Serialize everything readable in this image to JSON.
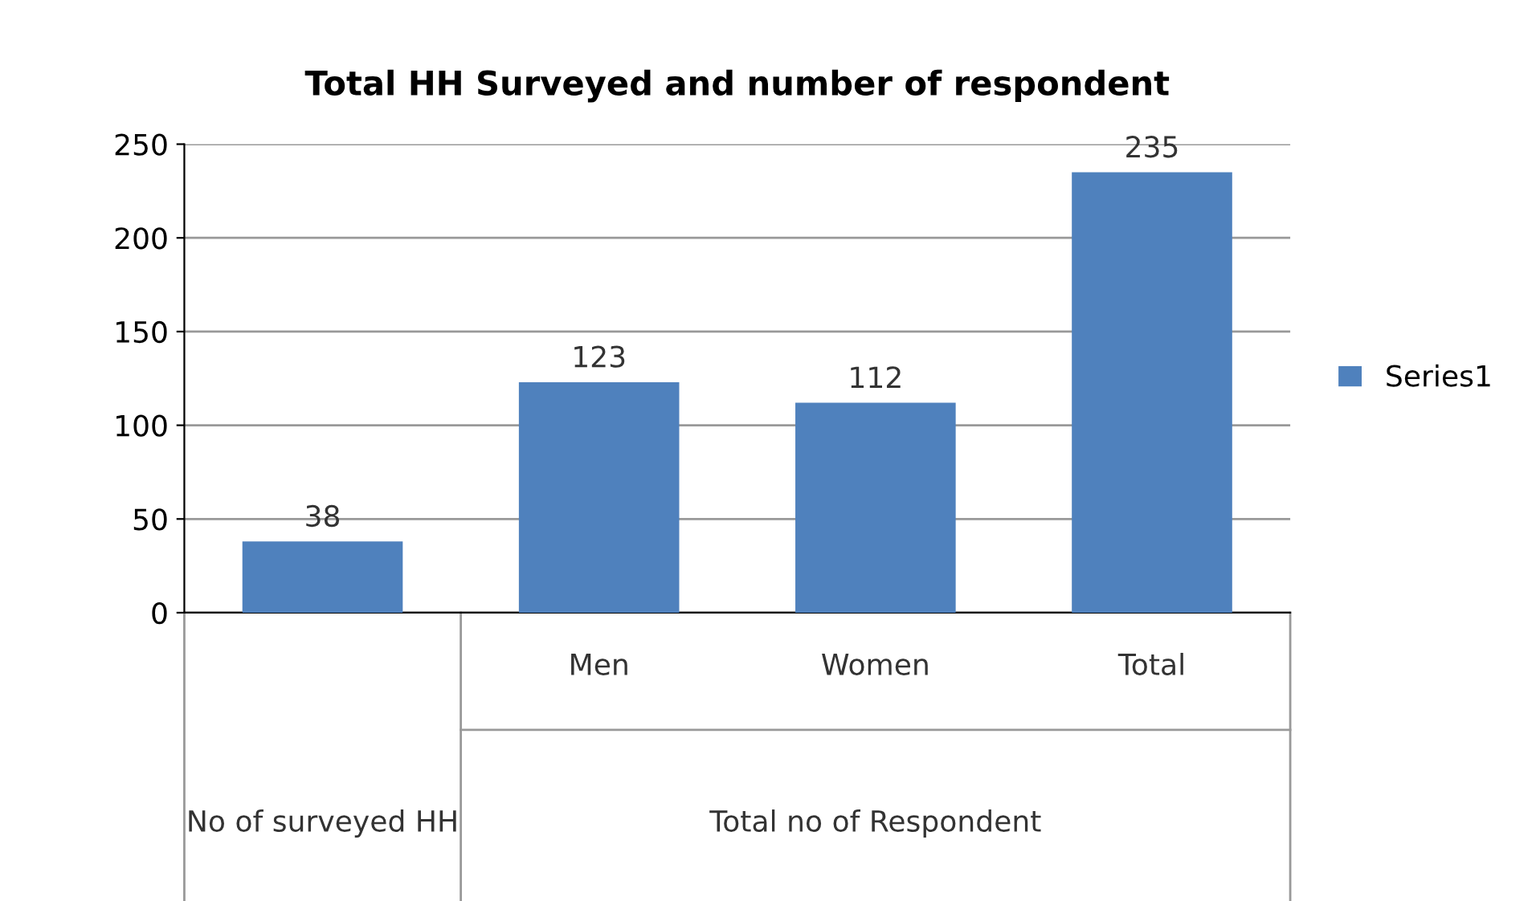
{
  "chart_data": {
    "type": "bar",
    "title": "Total HH Surveyed and number of respondent",
    "categories": [
      null,
      "Men",
      "Women",
      "Total"
    ],
    "series": [
      {
        "name": "Series1",
        "color": "#4f81bd",
        "values": [
          38,
          123,
          112,
          235
        ]
      }
    ],
    "annotations": [
      "No of surveyed HH",
      "Total no of Respondent"
    ],
    "ylim": [
      0,
      250
    ],
    "yticks": [
      0,
      50,
      100,
      150,
      200,
      250
    ],
    "grid": "y",
    "legend": "right",
    "data_labels": true
  }
}
